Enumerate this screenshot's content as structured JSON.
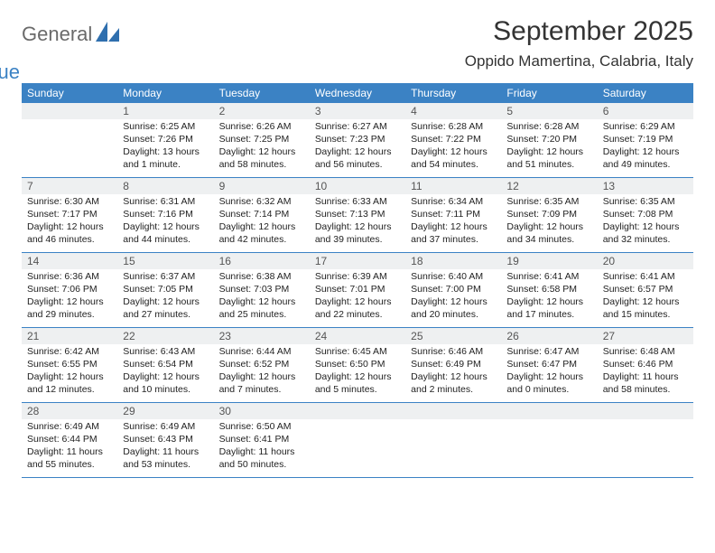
{
  "brand": {
    "part1": "General",
    "part2": "Blue"
  },
  "title": "September 2025",
  "location": "Oppido Mamertina, Calabria, Italy",
  "colors": {
    "header_bg": "#3b82c4",
    "header_text": "#ffffff",
    "daynum_bg": "#eef0f1",
    "body_text": "#222222",
    "title_text": "#333333",
    "logo_gray": "#6a6a6a",
    "logo_blue": "#3b82c4",
    "border": "#3b82c4",
    "page_bg": "#ffffff"
  },
  "typography": {
    "title_fontsize": 30,
    "location_fontsize": 17,
    "dayheader_fontsize": 12,
    "daynum_fontsize": 12,
    "body_fontsize": 10.5
  },
  "dayHeaders": [
    "Sunday",
    "Monday",
    "Tuesday",
    "Wednesday",
    "Thursday",
    "Friday",
    "Saturday"
  ],
  "weeks": [
    [
      {
        "empty": true
      },
      {
        "n": "1",
        "sunrise": "Sunrise: 6:25 AM",
        "sunset": "Sunset: 7:26 PM",
        "daylight": "Daylight: 13 hours and 1 minute."
      },
      {
        "n": "2",
        "sunrise": "Sunrise: 6:26 AM",
        "sunset": "Sunset: 7:25 PM",
        "daylight": "Daylight: 12 hours and 58 minutes."
      },
      {
        "n": "3",
        "sunrise": "Sunrise: 6:27 AM",
        "sunset": "Sunset: 7:23 PM",
        "daylight": "Daylight: 12 hours and 56 minutes."
      },
      {
        "n": "4",
        "sunrise": "Sunrise: 6:28 AM",
        "sunset": "Sunset: 7:22 PM",
        "daylight": "Daylight: 12 hours and 54 minutes."
      },
      {
        "n": "5",
        "sunrise": "Sunrise: 6:28 AM",
        "sunset": "Sunset: 7:20 PM",
        "daylight": "Daylight: 12 hours and 51 minutes."
      },
      {
        "n": "6",
        "sunrise": "Sunrise: 6:29 AM",
        "sunset": "Sunset: 7:19 PM",
        "daylight": "Daylight: 12 hours and 49 minutes."
      }
    ],
    [
      {
        "n": "7",
        "sunrise": "Sunrise: 6:30 AM",
        "sunset": "Sunset: 7:17 PM",
        "daylight": "Daylight: 12 hours and 46 minutes."
      },
      {
        "n": "8",
        "sunrise": "Sunrise: 6:31 AM",
        "sunset": "Sunset: 7:16 PM",
        "daylight": "Daylight: 12 hours and 44 minutes."
      },
      {
        "n": "9",
        "sunrise": "Sunrise: 6:32 AM",
        "sunset": "Sunset: 7:14 PM",
        "daylight": "Daylight: 12 hours and 42 minutes."
      },
      {
        "n": "10",
        "sunrise": "Sunrise: 6:33 AM",
        "sunset": "Sunset: 7:13 PM",
        "daylight": "Daylight: 12 hours and 39 minutes."
      },
      {
        "n": "11",
        "sunrise": "Sunrise: 6:34 AM",
        "sunset": "Sunset: 7:11 PM",
        "daylight": "Daylight: 12 hours and 37 minutes."
      },
      {
        "n": "12",
        "sunrise": "Sunrise: 6:35 AM",
        "sunset": "Sunset: 7:09 PM",
        "daylight": "Daylight: 12 hours and 34 minutes."
      },
      {
        "n": "13",
        "sunrise": "Sunrise: 6:35 AM",
        "sunset": "Sunset: 7:08 PM",
        "daylight": "Daylight: 12 hours and 32 minutes."
      }
    ],
    [
      {
        "n": "14",
        "sunrise": "Sunrise: 6:36 AM",
        "sunset": "Sunset: 7:06 PM",
        "daylight": "Daylight: 12 hours and 29 minutes."
      },
      {
        "n": "15",
        "sunrise": "Sunrise: 6:37 AM",
        "sunset": "Sunset: 7:05 PM",
        "daylight": "Daylight: 12 hours and 27 minutes."
      },
      {
        "n": "16",
        "sunrise": "Sunrise: 6:38 AM",
        "sunset": "Sunset: 7:03 PM",
        "daylight": "Daylight: 12 hours and 25 minutes."
      },
      {
        "n": "17",
        "sunrise": "Sunrise: 6:39 AM",
        "sunset": "Sunset: 7:01 PM",
        "daylight": "Daylight: 12 hours and 22 minutes."
      },
      {
        "n": "18",
        "sunrise": "Sunrise: 6:40 AM",
        "sunset": "Sunset: 7:00 PM",
        "daylight": "Daylight: 12 hours and 20 minutes."
      },
      {
        "n": "19",
        "sunrise": "Sunrise: 6:41 AM",
        "sunset": "Sunset: 6:58 PM",
        "daylight": "Daylight: 12 hours and 17 minutes."
      },
      {
        "n": "20",
        "sunrise": "Sunrise: 6:41 AM",
        "sunset": "Sunset: 6:57 PM",
        "daylight": "Daylight: 12 hours and 15 minutes."
      }
    ],
    [
      {
        "n": "21",
        "sunrise": "Sunrise: 6:42 AM",
        "sunset": "Sunset: 6:55 PM",
        "daylight": "Daylight: 12 hours and 12 minutes."
      },
      {
        "n": "22",
        "sunrise": "Sunrise: 6:43 AM",
        "sunset": "Sunset: 6:54 PM",
        "daylight": "Daylight: 12 hours and 10 minutes."
      },
      {
        "n": "23",
        "sunrise": "Sunrise: 6:44 AM",
        "sunset": "Sunset: 6:52 PM",
        "daylight": "Daylight: 12 hours and 7 minutes."
      },
      {
        "n": "24",
        "sunrise": "Sunrise: 6:45 AM",
        "sunset": "Sunset: 6:50 PM",
        "daylight": "Daylight: 12 hours and 5 minutes."
      },
      {
        "n": "25",
        "sunrise": "Sunrise: 6:46 AM",
        "sunset": "Sunset: 6:49 PM",
        "daylight": "Daylight: 12 hours and 2 minutes."
      },
      {
        "n": "26",
        "sunrise": "Sunrise: 6:47 AM",
        "sunset": "Sunset: 6:47 PM",
        "daylight": "Daylight: 12 hours and 0 minutes."
      },
      {
        "n": "27",
        "sunrise": "Sunrise: 6:48 AM",
        "sunset": "Sunset: 6:46 PM",
        "daylight": "Daylight: 11 hours and 58 minutes."
      }
    ],
    [
      {
        "n": "28",
        "sunrise": "Sunrise: 6:49 AM",
        "sunset": "Sunset: 6:44 PM",
        "daylight": "Daylight: 11 hours and 55 minutes."
      },
      {
        "n": "29",
        "sunrise": "Sunrise: 6:49 AM",
        "sunset": "Sunset: 6:43 PM",
        "daylight": "Daylight: 11 hours and 53 minutes."
      },
      {
        "n": "30",
        "sunrise": "Sunrise: 6:50 AM",
        "sunset": "Sunset: 6:41 PM",
        "daylight": "Daylight: 11 hours and 50 minutes."
      },
      {
        "empty": true
      },
      {
        "empty": true
      },
      {
        "empty": true
      },
      {
        "empty": true
      }
    ]
  ]
}
